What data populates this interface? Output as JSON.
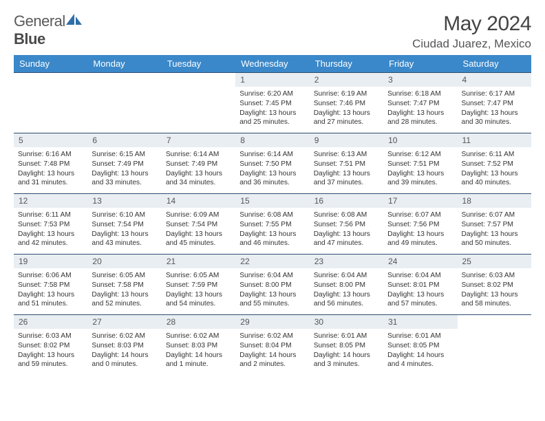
{
  "logo": {
    "text1": "General",
    "text2": "Blue"
  },
  "title": "May 2024",
  "location": "Ciudad Juarez, Mexico",
  "weekdays": [
    "Sunday",
    "Monday",
    "Tuesday",
    "Wednesday",
    "Thursday",
    "Friday",
    "Saturday"
  ],
  "colors": {
    "header_bg": "#3a88c9",
    "header_fg": "#ffffff",
    "daynum_bg": "#e9eef2",
    "border": "#2c4d6e",
    "logo_blue": "#2f6fa8"
  },
  "weeks": [
    [
      {
        "n": "",
        "sr": "",
        "ss": "",
        "dl": ""
      },
      {
        "n": "",
        "sr": "",
        "ss": "",
        "dl": ""
      },
      {
        "n": "",
        "sr": "",
        "ss": "",
        "dl": ""
      },
      {
        "n": "1",
        "sr": "Sunrise: 6:20 AM",
        "ss": "Sunset: 7:45 PM",
        "dl": "Daylight: 13 hours and 25 minutes."
      },
      {
        "n": "2",
        "sr": "Sunrise: 6:19 AM",
        "ss": "Sunset: 7:46 PM",
        "dl": "Daylight: 13 hours and 27 minutes."
      },
      {
        "n": "3",
        "sr": "Sunrise: 6:18 AM",
        "ss": "Sunset: 7:47 PM",
        "dl": "Daylight: 13 hours and 28 minutes."
      },
      {
        "n": "4",
        "sr": "Sunrise: 6:17 AM",
        "ss": "Sunset: 7:47 PM",
        "dl": "Daylight: 13 hours and 30 minutes."
      }
    ],
    [
      {
        "n": "5",
        "sr": "Sunrise: 6:16 AM",
        "ss": "Sunset: 7:48 PM",
        "dl": "Daylight: 13 hours and 31 minutes."
      },
      {
        "n": "6",
        "sr": "Sunrise: 6:15 AM",
        "ss": "Sunset: 7:49 PM",
        "dl": "Daylight: 13 hours and 33 minutes."
      },
      {
        "n": "7",
        "sr": "Sunrise: 6:14 AM",
        "ss": "Sunset: 7:49 PM",
        "dl": "Daylight: 13 hours and 34 minutes."
      },
      {
        "n": "8",
        "sr": "Sunrise: 6:14 AM",
        "ss": "Sunset: 7:50 PM",
        "dl": "Daylight: 13 hours and 36 minutes."
      },
      {
        "n": "9",
        "sr": "Sunrise: 6:13 AM",
        "ss": "Sunset: 7:51 PM",
        "dl": "Daylight: 13 hours and 37 minutes."
      },
      {
        "n": "10",
        "sr": "Sunrise: 6:12 AM",
        "ss": "Sunset: 7:51 PM",
        "dl": "Daylight: 13 hours and 39 minutes."
      },
      {
        "n": "11",
        "sr": "Sunrise: 6:11 AM",
        "ss": "Sunset: 7:52 PM",
        "dl": "Daylight: 13 hours and 40 minutes."
      }
    ],
    [
      {
        "n": "12",
        "sr": "Sunrise: 6:11 AM",
        "ss": "Sunset: 7:53 PM",
        "dl": "Daylight: 13 hours and 42 minutes."
      },
      {
        "n": "13",
        "sr": "Sunrise: 6:10 AM",
        "ss": "Sunset: 7:54 PM",
        "dl": "Daylight: 13 hours and 43 minutes."
      },
      {
        "n": "14",
        "sr": "Sunrise: 6:09 AM",
        "ss": "Sunset: 7:54 PM",
        "dl": "Daylight: 13 hours and 45 minutes."
      },
      {
        "n": "15",
        "sr": "Sunrise: 6:08 AM",
        "ss": "Sunset: 7:55 PM",
        "dl": "Daylight: 13 hours and 46 minutes."
      },
      {
        "n": "16",
        "sr": "Sunrise: 6:08 AM",
        "ss": "Sunset: 7:56 PM",
        "dl": "Daylight: 13 hours and 47 minutes."
      },
      {
        "n": "17",
        "sr": "Sunrise: 6:07 AM",
        "ss": "Sunset: 7:56 PM",
        "dl": "Daylight: 13 hours and 49 minutes."
      },
      {
        "n": "18",
        "sr": "Sunrise: 6:07 AM",
        "ss": "Sunset: 7:57 PM",
        "dl": "Daylight: 13 hours and 50 minutes."
      }
    ],
    [
      {
        "n": "19",
        "sr": "Sunrise: 6:06 AM",
        "ss": "Sunset: 7:58 PM",
        "dl": "Daylight: 13 hours and 51 minutes."
      },
      {
        "n": "20",
        "sr": "Sunrise: 6:05 AM",
        "ss": "Sunset: 7:58 PM",
        "dl": "Daylight: 13 hours and 52 minutes."
      },
      {
        "n": "21",
        "sr": "Sunrise: 6:05 AM",
        "ss": "Sunset: 7:59 PM",
        "dl": "Daylight: 13 hours and 54 minutes."
      },
      {
        "n": "22",
        "sr": "Sunrise: 6:04 AM",
        "ss": "Sunset: 8:00 PM",
        "dl": "Daylight: 13 hours and 55 minutes."
      },
      {
        "n": "23",
        "sr": "Sunrise: 6:04 AM",
        "ss": "Sunset: 8:00 PM",
        "dl": "Daylight: 13 hours and 56 minutes."
      },
      {
        "n": "24",
        "sr": "Sunrise: 6:04 AM",
        "ss": "Sunset: 8:01 PM",
        "dl": "Daylight: 13 hours and 57 minutes."
      },
      {
        "n": "25",
        "sr": "Sunrise: 6:03 AM",
        "ss": "Sunset: 8:02 PM",
        "dl": "Daylight: 13 hours and 58 minutes."
      }
    ],
    [
      {
        "n": "26",
        "sr": "Sunrise: 6:03 AM",
        "ss": "Sunset: 8:02 PM",
        "dl": "Daylight: 13 hours and 59 minutes."
      },
      {
        "n": "27",
        "sr": "Sunrise: 6:02 AM",
        "ss": "Sunset: 8:03 PM",
        "dl": "Daylight: 14 hours and 0 minutes."
      },
      {
        "n": "28",
        "sr": "Sunrise: 6:02 AM",
        "ss": "Sunset: 8:03 PM",
        "dl": "Daylight: 14 hours and 1 minute."
      },
      {
        "n": "29",
        "sr": "Sunrise: 6:02 AM",
        "ss": "Sunset: 8:04 PM",
        "dl": "Daylight: 14 hours and 2 minutes."
      },
      {
        "n": "30",
        "sr": "Sunrise: 6:01 AM",
        "ss": "Sunset: 8:05 PM",
        "dl": "Daylight: 14 hours and 3 minutes."
      },
      {
        "n": "31",
        "sr": "Sunrise: 6:01 AM",
        "ss": "Sunset: 8:05 PM",
        "dl": "Daylight: 14 hours and 4 minutes."
      },
      {
        "n": "",
        "sr": "",
        "ss": "",
        "dl": ""
      }
    ]
  ]
}
